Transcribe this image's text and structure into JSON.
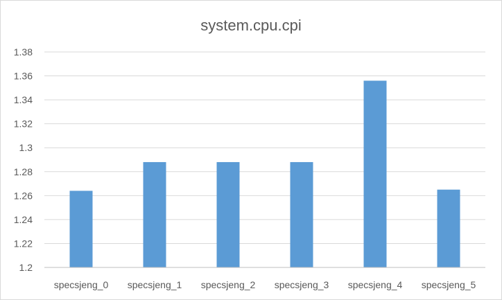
{
  "chart_data": {
    "type": "bar",
    "title": "system.cpu.cpi",
    "xlabel": "",
    "ylabel": "",
    "categories": [
      "specsjeng_0",
      "specsjeng_1",
      "specsjeng_2",
      "specsjeng_3",
      "specsjeng_4",
      "specsjeng_5"
    ],
    "values": [
      1.264,
      1.288,
      1.288,
      1.288,
      1.356,
      1.265
    ],
    "ylim": [
      1.2,
      1.38
    ],
    "yticks": [
      "1.2",
      "1.22",
      "1.24",
      "1.26",
      "1.28",
      "1.3",
      "1.32",
      "1.34",
      "1.36",
      "1.38"
    ],
    "grid": true,
    "legend": "none",
    "colors": {
      "bar": "#5b9bd5",
      "grid": "#d9d9d9",
      "axis": "#bfbfbf",
      "text": "#595959",
      "title": "#595959",
      "frame": "#d9d9d9"
    }
  }
}
